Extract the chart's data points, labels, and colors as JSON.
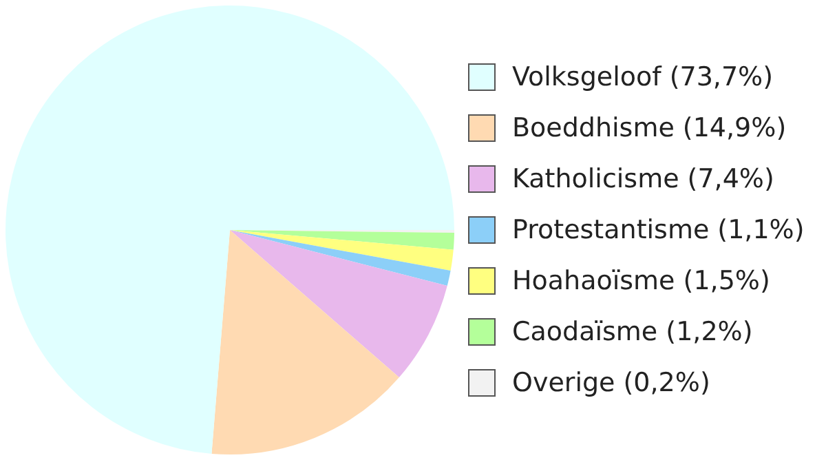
{
  "chart_data": {
    "type": "pie",
    "categories": [
      "Volksgeloof (73,7%)",
      "Boeddhisme (14,9%)",
      "Katholicisme (7,4%)",
      "Protestantisme (1,1%)",
      "Hoahaoïsme (1,5%)",
      "Caodaïsme (1,2%)",
      "Overige (0,2%)"
    ],
    "values": [
      73.7,
      14.9,
      7.4,
      1.1,
      1.5,
      1.2,
      0.2
    ],
    "colors": [
      "#e0ffff",
      "#ffdab2",
      "#e8b8ec",
      "#8ccff8",
      "#ffff80",
      "#b4ff9a",
      "#f2f2f2"
    ],
    "legend": "right"
  }
}
